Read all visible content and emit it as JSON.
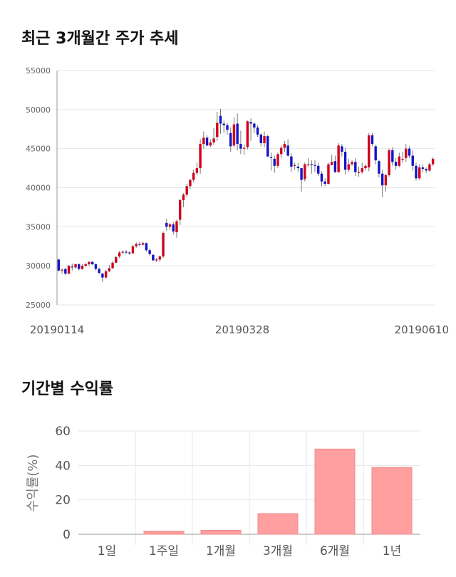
{
  "titles": {
    "price_trend": "최근 3개월간 주가 추세",
    "returns": "기간별 수익률"
  },
  "colors": {
    "up": "#d0021b",
    "down": "#1414c8",
    "bar": "#ff9f9f",
    "grid": "#e6e6e6"
  },
  "chart_data": [
    {
      "type": "candlestick",
      "title": "최근 3개월간 주가 추세",
      "x_tick_labels": [
        "20190114",
        "20190328",
        "20190610"
      ],
      "y_ticks": [
        25000,
        30000,
        35000,
        40000,
        45000,
        50000,
        55000
      ],
      "ylim": [
        25000,
        55000
      ],
      "grid": true,
      "candles": [
        [
          30800,
          29400,
          30900,
          29300
        ],
        [
          29400,
          29500,
          29700,
          29000
        ],
        [
          29600,
          29000,
          29700,
          28800
        ],
        [
          29000,
          30000,
          30100,
          28900
        ],
        [
          29900,
          29800,
          30300,
          29400
        ],
        [
          29800,
          30200,
          30300,
          29600
        ],
        [
          30200,
          29600,
          30300,
          29400
        ],
        [
          29600,
          30000,
          30200,
          29500
        ],
        [
          30000,
          30200,
          30400,
          29900
        ],
        [
          30200,
          30500,
          30600,
          30000
        ],
        [
          30500,
          30200,
          30600,
          30100
        ],
        [
          30200,
          29600,
          30300,
          29400
        ],
        [
          29600,
          29100,
          29800,
          28900
        ],
        [
          29000,
          28500,
          29100,
          27900
        ],
        [
          28500,
          29300,
          29500,
          28400
        ],
        [
          29300,
          29700,
          30100,
          29200
        ],
        [
          29700,
          30400,
          30600,
          29600
        ],
        [
          30400,
          31100,
          31300,
          30300
        ],
        [
          31200,
          31700,
          31900,
          31000
        ],
        [
          31700,
          31800,
          32000,
          31500
        ],
        [
          31800,
          31700,
          32000,
          31500
        ],
        [
          31700,
          31600,
          31900,
          31400
        ],
        [
          31600,
          32500,
          32700,
          31500
        ],
        [
          32500,
          32800,
          33000,
          32300
        ],
        [
          32800,
          32700,
          33000,
          32500
        ],
        [
          32700,
          32900,
          33100,
          32600
        ],
        [
          32900,
          32000,
          33000,
          31800
        ],
        [
          32000,
          31500,
          32200,
          31300
        ],
        [
          31400,
          30700,
          31500,
          30600
        ],
        [
          30700,
          30800,
          31000,
          30500
        ],
        [
          30800,
          31200,
          31300,
          30500
        ],
        [
          31200,
          34200,
          34400,
          31000
        ],
        [
          35500,
          35000,
          36000,
          34500
        ],
        [
          35000,
          35300,
          35500,
          34600
        ],
        [
          35300,
          34400,
          35600,
          34000
        ],
        [
          34300,
          35700,
          35900,
          33600
        ],
        [
          35900,
          38400,
          38600,
          35200
        ],
        [
          38400,
          39100,
          39300,
          37500
        ],
        [
          39100,
          40200,
          40500,
          38800
        ],
        [
          40200,
          41000,
          41100,
          39800
        ],
        [
          41000,
          41900,
          42300,
          40700
        ],
        [
          41900,
          42500,
          43200,
          41600
        ],
        [
          42500,
          45600,
          46200,
          41800
        ],
        [
          45600,
          46400,
          47200,
          45000
        ],
        [
          46400,
          45400,
          46700,
          45300
        ],
        [
          45400,
          45800,
          46200,
          45200
        ],
        [
          45800,
          46300,
          47600,
          45500
        ],
        [
          46500,
          48300,
          49700,
          46000
        ],
        [
          49200,
          48200,
          50100,
          46900
        ],
        [
          48200,
          48000,
          48600,
          47000
        ],
        [
          48000,
          47400,
          48300,
          46800
        ],
        [
          47000,
          45300,
          47700,
          44600
        ],
        [
          45400,
          48100,
          49000,
          45200
        ],
        [
          48200,
          45600,
          49500,
          44800
        ],
        [
          45600,
          45000,
          47300,
          44300
        ],
        [
          45000,
          45100,
          45500,
          44200
        ],
        [
          45200,
          48500,
          48600,
          44900
        ],
        [
          48400,
          48200,
          48900,
          46000
        ],
        [
          48200,
          47700,
          48400,
          47000
        ],
        [
          47700,
          46800,
          48000,
          46500
        ],
        [
          46800,
          45700,
          47000,
          45300
        ],
        [
          45700,
          46600,
          47200,
          45200
        ],
        [
          46600,
          44000,
          46800,
          43900
        ],
        [
          43900,
          43800,
          44500,
          42200
        ],
        [
          43700,
          42800,
          44100,
          41900
        ],
        [
          42800,
          44300,
          44500,
          42500
        ],
        [
          44300,
          45100,
          45400,
          43800
        ],
        [
          45100,
          45600,
          46000,
          44600
        ],
        [
          45400,
          44100,
          46200,
          44000
        ],
        [
          44000,
          42700,
          44400,
          42000
        ],
        [
          42800,
          42900,
          43200,
          42300
        ],
        [
          42700,
          42500,
          43200,
          42000
        ],
        [
          42500,
          41000,
          42500,
          39500
        ],
        [
          41100,
          43000,
          43200,
          40800
        ],
        [
          43000,
          43000,
          43800,
          42700
        ],
        [
          43000,
          42900,
          43500,
          41800
        ],
        [
          42900,
          42800,
          43500,
          42000
        ],
        [
          42800,
          41800,
          43200,
          41500
        ],
        [
          41800,
          40800,
          42100,
          40200
        ],
        [
          40800,
          40500,
          41200,
          40200
        ],
        [
          40500,
          43000,
          43200,
          40400
        ],
        [
          42900,
          43300,
          44200,
          42900
        ],
        [
          43400,
          42000,
          44100,
          41900
        ],
        [
          42000,
          45400,
          45700,
          41900
        ],
        [
          45300,
          44600,
          45600,
          44000
        ],
        [
          44600,
          42300,
          45100,
          41700
        ],
        [
          42300,
          43000,
          43700,
          42000
        ],
        [
          43000,
          43300,
          43500,
          42800
        ],
        [
          43300,
          42000,
          43800,
          41500
        ],
        [
          42000,
          42000,
          42700,
          41400
        ],
        [
          42000,
          42500,
          43200,
          41800
        ],
        [
          42500,
          42800,
          43000,
          42200
        ],
        [
          42600,
          46700,
          47000,
          42100
        ],
        [
          46700,
          45600,
          47000,
          45300
        ],
        [
          45300,
          43500,
          45500,
          43000
        ],
        [
          43400,
          41800,
          43600,
          41300
        ],
        [
          41800,
          40300,
          42300,
          38800
        ],
        [
          40300,
          41600,
          41800,
          39500
        ],
        [
          41600,
          44800,
          45000,
          41400
        ],
        [
          44800,
          43300,
          45200,
          42800
        ],
        [
          43300,
          42800,
          43800,
          42300
        ],
        [
          42800,
          44000,
          44500,
          42600
        ],
        [
          43700,
          43700,
          44600,
          43200
        ],
        [
          43800,
          45000,
          45600,
          43300
        ],
        [
          45000,
          44100,
          45300,
          43800
        ],
        [
          44100,
          42800,
          44800,
          42200
        ],
        [
          42800,
          41200,
          43200,
          40900
        ],
        [
          41200,
          42600,
          43000,
          41000
        ],
        [
          42600,
          42400,
          43000,
          42000
        ],
        [
          42400,
          42200,
          42600,
          41900
        ],
        [
          42200,
          43000,
          43200,
          42000
        ],
        [
          43000,
          43700,
          43900,
          42800
        ]
      ]
    },
    {
      "type": "bar",
      "title": "기간별 수익률",
      "categories": [
        "1일",
        "1주일",
        "1개월",
        "3개월",
        "6개월",
        "1년"
      ],
      "values": [
        0,
        1.8,
        2.3,
        12,
        49.5,
        38.8
      ],
      "ylabel": "수익률(%)",
      "y_ticks": [
        0,
        20,
        40,
        60
      ],
      "ylim": [
        0,
        60
      ],
      "grid": true
    }
  ]
}
